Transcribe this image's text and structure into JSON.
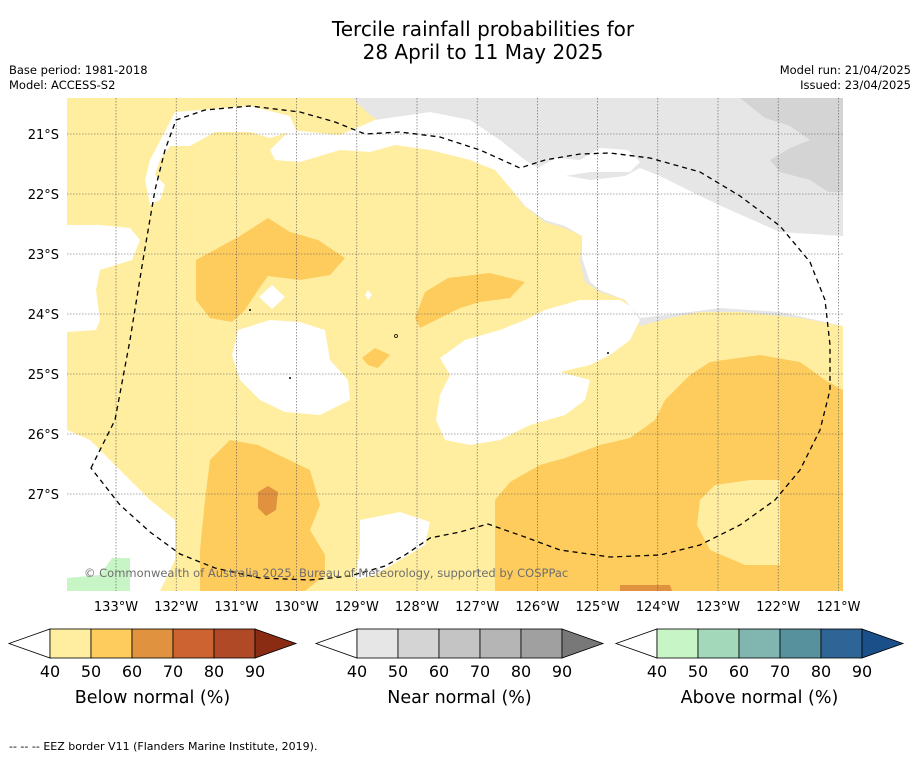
{
  "title": {
    "line1": "Tercile rainfall probabilities for",
    "line2": "28 April to 11 May 2025"
  },
  "meta_left": {
    "base_period": "Base period: 1981-2018",
    "model": "Model: ACCESS-S2"
  },
  "meta_right": {
    "model_run": "Model run: 21/04/2025",
    "issued": "Issued: 23/04/2025"
  },
  "map": {
    "lat_labels": [
      "21°S",
      "22°S",
      "23°S",
      "24°S",
      "25°S",
      "26°S",
      "27°S"
    ],
    "lon_labels": [
      "133°W",
      "132°W",
      "131°W",
      "130°W",
      "129°W",
      "128°W",
      "127°W",
      "126°W",
      "125°W",
      "124°W",
      "123°W",
      "122°W",
      "121°W"
    ],
    "copyright": "© Commonwealth of Australia 2025, Bureau of Meteorology, supported by COSPPac",
    "boundary_style": "dashed"
  },
  "colorbars": [
    {
      "title": "Below normal (%)",
      "ticks": [
        "40",
        "50",
        "60",
        "70",
        "80",
        "90"
      ],
      "colors": [
        "#ffffff",
        "#ffeda0",
        "#fecc5c",
        "#e0923f",
        "#cc6331",
        "#b04a26",
        "#8a2b14"
      ]
    },
    {
      "title": "Near normal (%)",
      "ticks": [
        "40",
        "50",
        "60",
        "70",
        "80",
        "90"
      ],
      "colors": [
        "#ffffff",
        "#e6e6e6",
        "#d4d4d4",
        "#c4c4c4",
        "#b5b5b5",
        "#a0a0a0",
        "#787878"
      ]
    },
    {
      "title": "Above normal (%)",
      "ticks": [
        "40",
        "50",
        "60",
        "70",
        "80",
        "90"
      ],
      "colors": [
        "#ffffff",
        "#c7f5c6",
        "#a4d8bb",
        "#80b5b0",
        "#58919e",
        "#2f6496",
        "#1a4f8a"
      ]
    }
  ],
  "footer": {
    "legend_symbol": "--  --  --",
    "text": "EEZ border V11 (Flanders Marine Institute, 2019)."
  }
}
